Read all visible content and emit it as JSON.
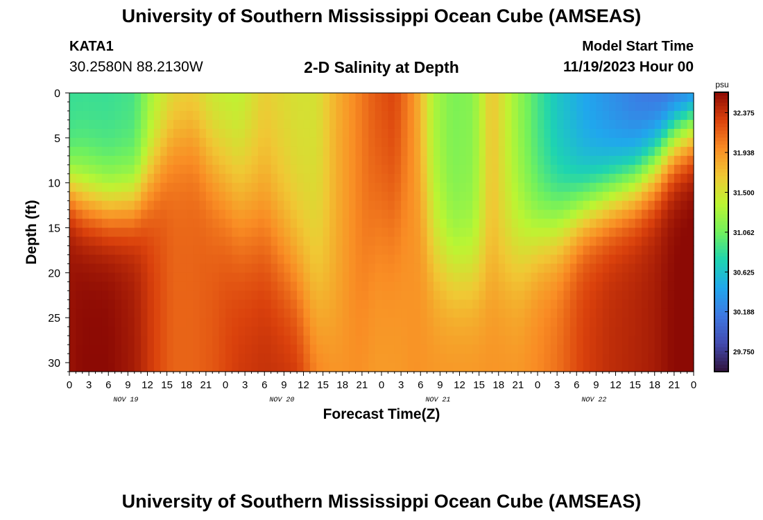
{
  "header": {
    "title": "University of Southern Mississippi Ocean Cube (AMSEAS)",
    "station": "KATA1",
    "location": "30.2580N  88.2130W",
    "model_start_label": "Model Start Time",
    "model_start_value": "11/19/2023 Hour 00"
  },
  "footer": {
    "title": "University of Southern Mississippi Ocean Cube (AMSEAS)"
  },
  "chart_data": {
    "type": "heatmap",
    "title": "2-D Salinity at Depth",
    "xlabel": "Forecast Time(Z)",
    "ylabel": "Depth (ft)",
    "x_ticks": [
      "0",
      "3",
      "6",
      "9",
      "12",
      "15",
      "18",
      "21",
      "0",
      "3",
      "6",
      "9",
      "12",
      "15",
      "18",
      "21",
      "0",
      "3",
      "6",
      "9",
      "12",
      "15",
      "18",
      "21",
      "0",
      "3",
      "6",
      "9",
      "12",
      "15",
      "18",
      "21",
      "0"
    ],
    "x_range_hours": [
      0,
      96
    ],
    "date_labels": [
      {
        "label": "NOV 19",
        "hour": 9
      },
      {
        "label": "NOV 20",
        "hour": 33
      },
      {
        "label": "NOV 21",
        "hour": 57
      },
      {
        "label": "NOV 22",
        "hour": 81
      }
    ],
    "y_ticks": [
      0,
      5,
      10,
      15,
      20,
      25,
      30
    ],
    "ylim": [
      0,
      31
    ],
    "colorbar": {
      "unit": "psu",
      "ticks": [
        "32.375",
        "31.938",
        "31.500",
        "31.062",
        "30.625",
        "30.188",
        "29.750"
      ],
      "range": [
        29.53,
        32.6
      ]
    },
    "profiles": [
      {
        "hour": 0,
        "shallow": 30.85,
        "cline": 10.5,
        "width": 2.0,
        "deep": 32.55
      },
      {
        "hour": 2,
        "shallow": 30.85,
        "cline": 11.5,
        "width": 2.5,
        "deep": 32.6
      },
      {
        "hour": 6,
        "shallow": 30.85,
        "cline": 12.5,
        "width": 2.5,
        "deep": 32.6
      },
      {
        "hour": 10,
        "shallow": 30.9,
        "cline": 12.0,
        "width": 2.5,
        "deep": 32.5
      },
      {
        "hour": 13,
        "shallow": 31.3,
        "cline": 9.0,
        "width": 3.0,
        "deep": 32.3
      },
      {
        "hour": 16,
        "shallow": 31.5,
        "cline": 5.0,
        "width": 3.0,
        "deep": 32.15
      },
      {
        "hour": 19,
        "shallow": 31.55,
        "cline": 4.5,
        "width": 3.0,
        "deep": 32.15
      },
      {
        "hour": 22,
        "shallow": 31.35,
        "cline": 7.5,
        "width": 4.0,
        "deep": 32.2
      },
      {
        "hour": 26,
        "shallow": 31.3,
        "cline": 12.0,
        "width": 5.0,
        "deep": 32.35
      },
      {
        "hour": 30,
        "shallow": 31.6,
        "cline": 14.0,
        "width": 5.0,
        "deep": 32.4
      },
      {
        "hour": 35,
        "shallow": 31.5,
        "cline": 20.0,
        "width": 5.0,
        "deep": 32.4
      },
      {
        "hour": 38,
        "shallow": 31.5,
        "cline": 25.0,
        "width": 6.0,
        "deep": 32.2
      },
      {
        "hour": 41,
        "shallow": 31.8,
        "cline": 27.0,
        "width": 5.0,
        "deep": 32.0
      },
      {
        "hour": 44,
        "shallow": 32.0,
        "cline": 26.0,
        "width": 6.0,
        "deep": 31.95
      },
      {
        "hour": 47,
        "shallow": 32.2,
        "cline": 15.0,
        "width": 5.0,
        "deep": 31.9
      },
      {
        "hour": 50,
        "shallow": 32.3,
        "cline": 14.0,
        "width": 5.0,
        "deep": 31.9
      },
      {
        "hour": 53,
        "shallow": 31.95,
        "cline": 10.0,
        "width": 5.0,
        "deep": 31.95
      },
      {
        "hour": 56,
        "shallow": 31.3,
        "cline": 18.0,
        "width": 4.0,
        "deep": 31.95
      },
      {
        "hour": 59,
        "shallow": 31.1,
        "cline": 20.0,
        "width": 3.5,
        "deep": 31.95
      },
      {
        "hour": 62,
        "shallow": 31.15,
        "cline": 20.0,
        "width": 3.5,
        "deep": 31.95
      },
      {
        "hour": 65,
        "shallow": 31.7,
        "cline": 20.0,
        "width": 3.5,
        "deep": 31.95
      },
      {
        "hour": 69,
        "shallow": 31.2,
        "cline": 18.0,
        "width": 4.0,
        "deep": 31.95
      },
      {
        "hour": 72,
        "shallow": 30.9,
        "cline": 16.0,
        "width": 3.0,
        "deep": 32.0
      },
      {
        "hour": 75,
        "shallow": 30.65,
        "cline": 15.0,
        "width": 3.0,
        "deep": 32.1
      },
      {
        "hour": 79,
        "shallow": 30.45,
        "cline": 13.0,
        "width": 2.5,
        "deep": 32.3
      },
      {
        "hour": 83,
        "shallow": 30.3,
        "cline": 11.5,
        "width": 2.5,
        "deep": 32.4
      },
      {
        "hour": 87,
        "shallow": 30.15,
        "cline": 10.0,
        "width": 2.5,
        "deep": 32.45
      },
      {
        "hour": 90,
        "shallow": 30.05,
        "cline": 8.0,
        "width": 2.5,
        "deep": 32.5
      },
      {
        "hour": 93,
        "shallow": 29.9,
        "cline": 5.0,
        "width": 2.5,
        "deep": 32.6
      },
      {
        "hour": 96,
        "shallow": 29.8,
        "cline": 3.5,
        "width": 2.5,
        "deep": 32.65
      }
    ]
  }
}
